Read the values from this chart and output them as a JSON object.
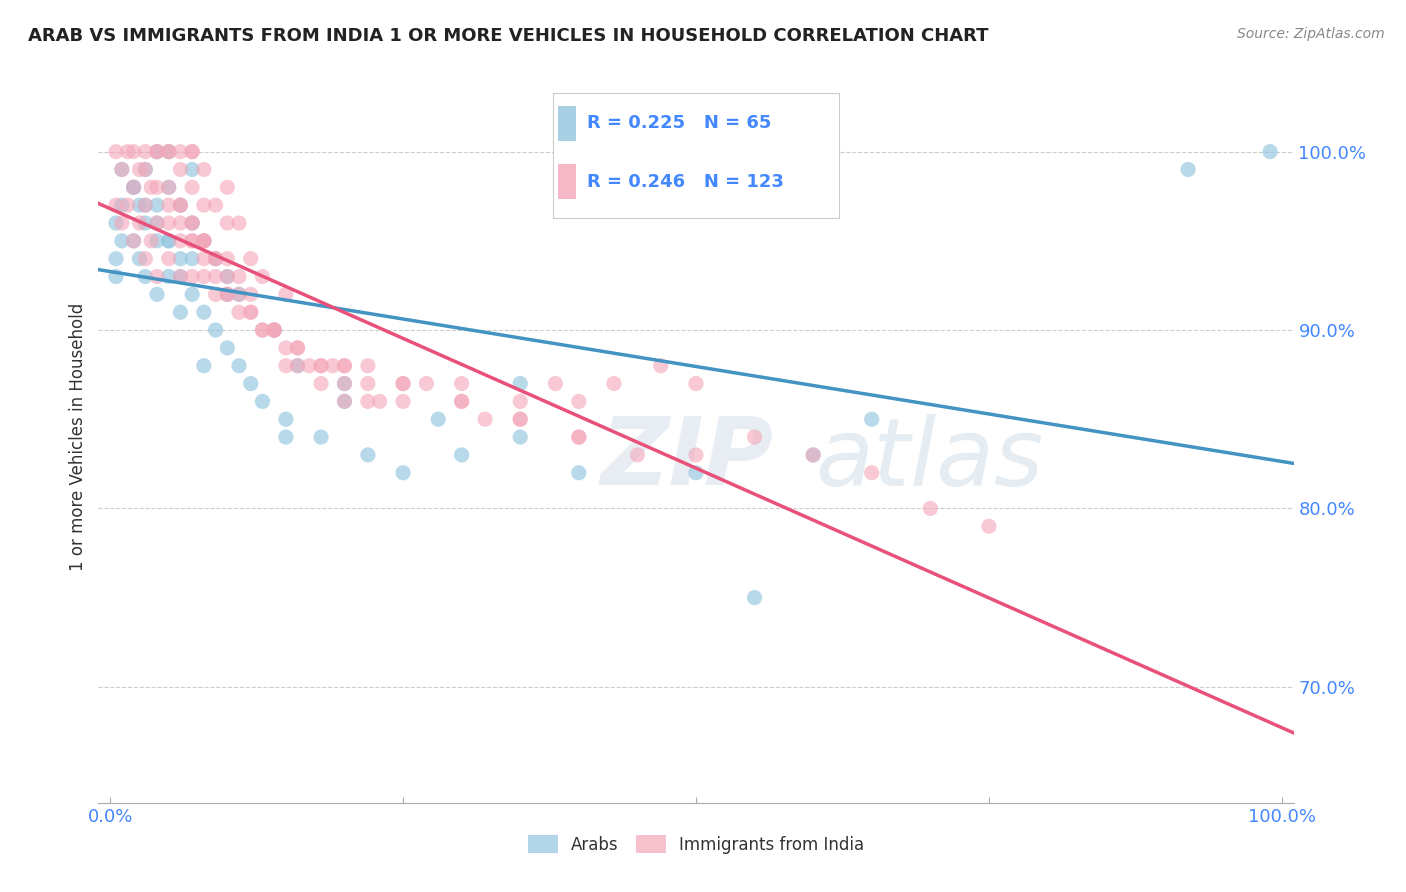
{
  "title": "ARAB VS IMMIGRANTS FROM INDIA 1 OR MORE VEHICLES IN HOUSEHOLD CORRELATION CHART",
  "source": "Source: ZipAtlas.com",
  "ylabel": "1 or more Vehicles in Household",
  "ymin": 0.635,
  "ymax": 1.045,
  "xmin": -0.01,
  "xmax": 1.01,
  "arab_R": 0.225,
  "arab_N": 65,
  "india_R": 0.246,
  "india_N": 123,
  "legend_labels": [
    "Arabs",
    "Immigrants from India"
  ],
  "arab_color": "#92c5de",
  "india_color": "#f4a6b8",
  "arab_line_color": "#4393c3",
  "india_line_color": "#e8527a",
  "watermark_zip": "ZIP",
  "watermark_atlas": "atlas",
  "background_color": "#ffffff",
  "grid_color": "#cccccc",
  "tick_color": "#4488ff",
  "arab_x": [
    0.005,
    0.01,
    0.01,
    0.02,
    0.02,
    0.025,
    0.025,
    0.03,
    0.03,
    0.03,
    0.04,
    0.04,
    0.04,
    0.04,
    0.05,
    0.05,
    0.05,
    0.05,
    0.06,
    0.06,
    0.06,
    0.07,
    0.07,
    0.07,
    0.07,
    0.08,
    0.08,
    0.09,
    0.09,
    0.1,
    0.1,
    0.11,
    0.11,
    0.12,
    0.13,
    0.14,
    0.15,
    0.16,
    0.18,
    0.2,
    0.22,
    0.25,
    0.28,
    0.3,
    0.35,
    0.4,
    0.5,
    0.55,
    0.6,
    0.65,
    0.35,
    0.2,
    0.15,
    0.1,
    0.08,
    0.06,
    0.05,
    0.04,
    0.03,
    0.02,
    0.01,
    0.005,
    0.005,
    0.92,
    0.99
  ],
  "arab_y": [
    0.96,
    0.97,
    0.99,
    0.95,
    0.98,
    0.94,
    0.97,
    0.93,
    0.96,
    0.99,
    0.92,
    0.95,
    0.97,
    1.0,
    0.93,
    0.95,
    0.98,
    1.0,
    0.91,
    0.94,
    0.97,
    0.92,
    0.94,
    0.96,
    0.99,
    0.91,
    0.95,
    0.9,
    0.94,
    0.89,
    0.93,
    0.88,
    0.92,
    0.87,
    0.86,
    0.9,
    0.85,
    0.88,
    0.84,
    0.87,
    0.83,
    0.82,
    0.85,
    0.83,
    0.84,
    0.82,
    0.82,
    0.75,
    0.83,
    0.85,
    0.87,
    0.86,
    0.84,
    0.92,
    0.88,
    0.93,
    0.95,
    0.96,
    0.97,
    0.98,
    0.95,
    0.94,
    0.93,
    0.99,
    1.0
  ],
  "india_x": [
    0.005,
    0.005,
    0.01,
    0.01,
    0.015,
    0.015,
    0.02,
    0.02,
    0.02,
    0.025,
    0.025,
    0.03,
    0.03,
    0.03,
    0.03,
    0.035,
    0.035,
    0.04,
    0.04,
    0.04,
    0.04,
    0.04,
    0.05,
    0.05,
    0.05,
    0.05,
    0.05,
    0.06,
    0.06,
    0.06,
    0.06,
    0.06,
    0.07,
    0.07,
    0.07,
    0.07,
    0.07,
    0.07,
    0.08,
    0.08,
    0.08,
    0.08,
    0.09,
    0.09,
    0.09,
    0.1,
    0.1,
    0.1,
    0.1,
    0.11,
    0.11,
    0.11,
    0.12,
    0.12,
    0.13,
    0.13,
    0.14,
    0.15,
    0.15,
    0.16,
    0.17,
    0.18,
    0.19,
    0.2,
    0.22,
    0.23,
    0.25,
    0.27,
    0.3,
    0.32,
    0.35,
    0.38,
    0.4,
    0.43,
    0.47,
    0.5,
    0.13,
    0.18,
    0.22,
    0.08,
    0.1,
    0.12,
    0.07,
    0.09,
    0.11,
    0.06,
    0.08,
    0.14,
    0.16,
    0.2,
    0.25,
    0.3,
    0.35,
    0.4,
    0.15,
    0.2,
    0.25,
    0.3,
    0.35,
    0.4,
    0.45,
    0.5,
    0.55,
    0.6,
    0.65,
    0.7,
    0.75,
    0.05,
    0.06,
    0.07,
    0.08,
    0.09,
    0.1,
    0.12,
    0.14,
    0.16,
    0.18,
    0.2,
    0.22
  ],
  "india_y": [
    0.97,
    1.0,
    0.96,
    0.99,
    0.97,
    1.0,
    0.95,
    0.98,
    1.0,
    0.96,
    0.99,
    0.94,
    0.97,
    0.99,
    1.0,
    0.95,
    0.98,
    0.93,
    0.96,
    0.98,
    1.0,
    1.0,
    0.94,
    0.96,
    0.98,
    1.0,
    1.0,
    0.93,
    0.95,
    0.97,
    0.99,
    1.0,
    0.93,
    0.95,
    0.96,
    0.98,
    1.0,
    1.0,
    0.93,
    0.95,
    0.97,
    0.99,
    0.92,
    0.94,
    0.97,
    0.92,
    0.94,
    0.96,
    0.98,
    0.91,
    0.93,
    0.96,
    0.91,
    0.94,
    0.9,
    0.93,
    0.9,
    0.88,
    0.92,
    0.88,
    0.88,
    0.87,
    0.88,
    0.86,
    0.87,
    0.86,
    0.86,
    0.87,
    0.87,
    0.85,
    0.86,
    0.87,
    0.86,
    0.87,
    0.88,
    0.87,
    0.9,
    0.88,
    0.88,
    0.95,
    0.93,
    0.92,
    0.96,
    0.94,
    0.92,
    0.97,
    0.95,
    0.9,
    0.89,
    0.88,
    0.87,
    0.86,
    0.85,
    0.84,
    0.89,
    0.88,
    0.87,
    0.86,
    0.85,
    0.84,
    0.83,
    0.83,
    0.84,
    0.83,
    0.82,
    0.8,
    0.79,
    0.97,
    0.96,
    0.95,
    0.94,
    0.93,
    0.92,
    0.91,
    0.9,
    0.89,
    0.88,
    0.87,
    0.86
  ]
}
